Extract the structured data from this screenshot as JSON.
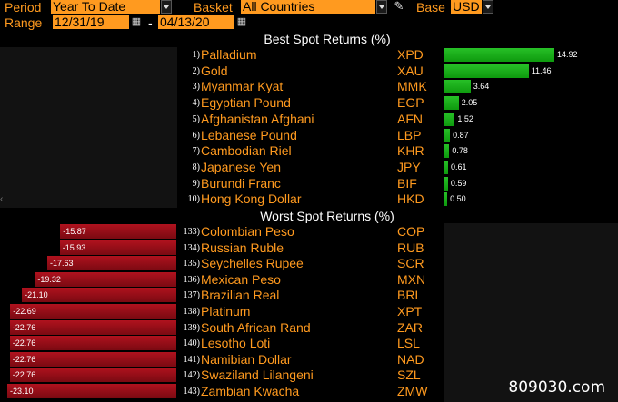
{
  "header": {
    "period_label": "Period",
    "period_value": "Year To Date",
    "basket_label": "Basket",
    "basket_value": "All Countries",
    "base_label": "Base",
    "base_value": "USD",
    "range_label": "Range",
    "range_start": "12/31/19",
    "range_sep": "-",
    "range_end": "04/13/20"
  },
  "best": {
    "title": "Best Spot Returns (%)",
    "rows": [
      {
        "rank": "1)",
        "name": "Palladium",
        "code": "XPD",
        "value": 14.92,
        "label": "14.92"
      },
      {
        "rank": "2)",
        "name": "Gold",
        "code": "XAU",
        "value": 11.46,
        "label": "11.46"
      },
      {
        "rank": "3)",
        "name": "Myanmar Kyat",
        "code": "MMK",
        "value": 3.64,
        "label": "3.64"
      },
      {
        "rank": "4)",
        "name": "Egyptian Pound",
        "code": "EGP",
        "value": 2.05,
        "label": "2.05"
      },
      {
        "rank": "5)",
        "name": "Afghanistan Afghani",
        "code": "AFN",
        "value": 1.52,
        "label": "1.52"
      },
      {
        "rank": "6)",
        "name": "Lebanese Pound",
        "code": "LBP",
        "value": 0.87,
        "label": "0.87"
      },
      {
        "rank": "7)",
        "name": "Cambodian Riel",
        "code": "KHR",
        "value": 0.78,
        "label": "0.78"
      },
      {
        "rank": "8)",
        "name": "Japanese Yen",
        "code": "JPY",
        "value": 0.61,
        "label": "0.61"
      },
      {
        "rank": "9)",
        "name": "Burundi Franc",
        "code": "BIF",
        "value": 0.59,
        "label": "0.59"
      },
      {
        "rank": "10)",
        "name": "Hong Kong Dollar",
        "code": "HKD",
        "value": 0.5,
        "label": "0.50"
      }
    ]
  },
  "worst": {
    "title": "Worst Spot Returns (%)",
    "rows": [
      {
        "rank": "133)",
        "name": "Colombian Peso",
        "code": "COP",
        "value": -15.87,
        "label": "-15.87"
      },
      {
        "rank": "134)",
        "name": "Russian Ruble",
        "code": "RUB",
        "value": -15.93,
        "label": "-15.93"
      },
      {
        "rank": "135)",
        "name": "Seychelles Rupee",
        "code": "SCR",
        "value": -17.63,
        "label": "-17.63"
      },
      {
        "rank": "136)",
        "name": "Mexican Peso",
        "code": "MXN",
        "value": -19.32,
        "label": "-19.32"
      },
      {
        "rank": "137)",
        "name": "Brazilian Real",
        "code": "BRL",
        "value": -21.1,
        "label": "-21.10"
      },
      {
        "rank": "138)",
        "name": "Platinum",
        "code": "XPT",
        "value": -22.69,
        "label": "-22.69"
      },
      {
        "rank": "139)",
        "name": "South African Rand",
        "code": "ZAR",
        "value": -22.76,
        "label": "-22.76"
      },
      {
        "rank": "140)",
        "name": "Lesotho Loti",
        "code": "LSL",
        "value": -22.76,
        "label": "-22.76"
      },
      {
        "rank": "141)",
        "name": "Namibian Dollar",
        "code": "NAD",
        "value": -22.76,
        "label": "-22.76"
      },
      {
        "rank": "142)",
        "name": "Swaziland Lilangeni",
        "code": "SZL",
        "value": -22.76,
        "label": "-22.76"
      },
      {
        "rank": "143)",
        "name": "Zambian Kwacha",
        "code": "ZMW",
        "value": -23.1,
        "label": "-23.10"
      }
    ]
  },
  "watermark": "809030.com",
  "colors": {
    "accent": "#ff9a1f",
    "positive": "#1fb01f",
    "negative": "#a0101c"
  }
}
